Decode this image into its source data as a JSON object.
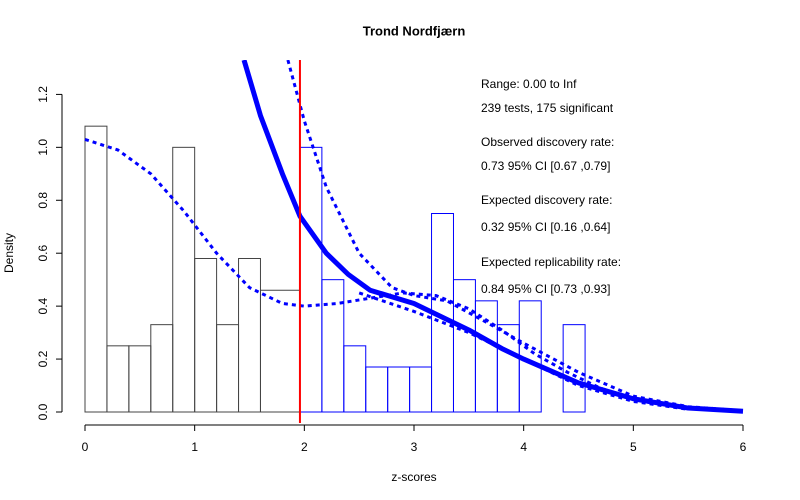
{
  "chart_data": {
    "type": "histogram",
    "title": "Trond Nordfjærn",
    "xlabel": "z-scores",
    "ylabel": "Density",
    "bins": [
      0,
      0.2,
      0.4,
      0.6,
      0.8,
      1.0,
      1.2,
      1.4,
      1.6,
      1.96,
      2.16,
      2.36,
      2.56,
      2.76,
      2.96,
      3.16,
      3.36,
      3.56,
      3.76,
      3.96,
      4.16,
      4.36,
      4.56
    ],
    "counts": [
      1.08,
      0.25,
      0.25,
      0.33,
      1.0,
      0.58,
      0.33,
      0.58,
      0.46,
      1.0,
      0.5,
      0.25,
      0.17,
      0.17,
      0.17,
      0.75,
      0.5,
      0.42,
      0.33,
      0.42,
      0,
      0.33
    ],
    "color": "#444444",
    "color_significant": "#0000ff",
    "vline": {
      "x": 1.96,
      "color": "#ff0000"
    },
    "lines": [
      {
        "color": "#0000ff",
        "width": 5,
        "dashed": false,
        "x": [
          1.45,
          1.6,
          1.8,
          1.96,
          2.2,
          2.4,
          2.6,
          3.0,
          3.2,
          3.5,
          3.8,
          4.0,
          4.5,
          5.0,
          5.5,
          6.0
        ],
        "y": [
          1.33,
          1.12,
          0.9,
          0.74,
          0.6,
          0.52,
          0.46,
          0.41,
          0.37,
          0.31,
          0.24,
          0.2,
          0.11,
          0.05,
          0.015,
          0.003
        ]
      },
      {
        "color": "#0000ff",
        "width": 3,
        "dashed": true,
        "x": [
          1.85,
          2.0,
          2.2,
          2.5,
          2.8,
          3.0,
          3.3,
          3.7,
          4.0,
          4.5,
          5.0,
          5.5,
          6.0
        ],
        "y": [
          1.33,
          1.1,
          0.85,
          0.6,
          0.47,
          0.44,
          0.42,
          0.33,
          0.26,
          0.15,
          0.06,
          0.02,
          0.005
        ]
      },
      {
        "color": "#0000ff",
        "width": 3,
        "dashed": true,
        "x": [
          0,
          0.3,
          0.6,
          0.9,
          1.2,
          1.5,
          1.8,
          2.0,
          2.3,
          2.6,
          2.9,
          3.2,
          3.5,
          3.8,
          4.1,
          4.4,
          4.7,
          5.0,
          5.2
        ],
        "y": [
          1.03,
          0.99,
          0.9,
          0.76,
          0.6,
          0.47,
          0.41,
          0.4,
          0.41,
          0.43,
          0.45,
          0.44,
          0.39,
          0.31,
          0.22,
          0.15,
          0.09,
          0.05,
          0.03
        ]
      },
      {
        "color": "#0000ff",
        "width": 3,
        "dashed": true,
        "x": [
          2.5,
          3.0,
          3.5,
          4.0,
          4.5,
          5.0,
          5.5
        ],
        "y": [
          0.45,
          0.38,
          0.3,
          0.2,
          0.1,
          0.04,
          0.01
        ]
      }
    ],
    "annotations": [
      "Range: 0.00 to Inf",
      "239 tests, 175 significant",
      "Observed discovery rate:",
      "0.73  95% CI [0.67 ,0.79]",
      "Expected discovery rate:",
      "0.32  95% CI [0.16 ,0.64]",
      "Expected replicability rate:",
      "0.84  95% CI [0.73 ,0.93]"
    ],
    "xlim": [
      0,
      6
    ],
    "ylim": [
      0,
      1.33
    ],
    "xticks": [
      0,
      1,
      2,
      3,
      4,
      5,
      6
    ],
    "yticks": [
      {
        "value": 0,
        "label": "0.0"
      },
      0.2,
      0.4,
      0.6,
      0.8,
      {
        "value": 1,
        "label": "1.0"
      },
      1.2
    ]
  }
}
